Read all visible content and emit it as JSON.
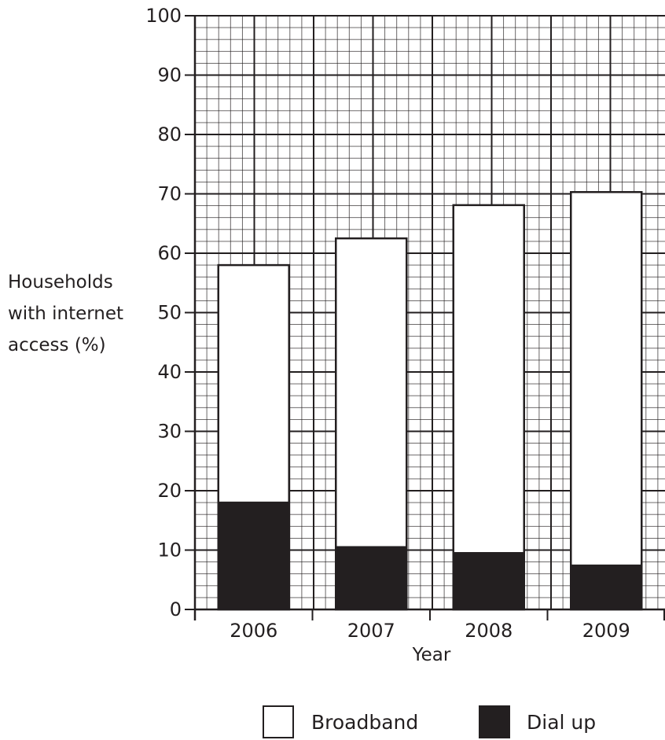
{
  "chart_data": {
    "type": "bar",
    "stacked": true,
    "categories": [
      "2006",
      "2007",
      "2008",
      "2009"
    ],
    "series": [
      {
        "name": "Dial up",
        "values": [
          18,
          10.5,
          9.5,
          7.4
        ],
        "color": "#231f20"
      },
      {
        "name": "Broadband",
        "values": [
          40,
          52,
          58.6,
          62.9
        ],
        "color": "#ffffff"
      }
    ],
    "totals": [
      58,
      62.5,
      68.1,
      70.3
    ],
    "xlabel": "Year",
    "ylabel_lines": [
      "Households",
      "with internet",
      "access (%)"
    ],
    "ylim": [
      0,
      100
    ],
    "yticks": [
      "0",
      "10",
      "20",
      "30",
      "40",
      "50",
      "60",
      "70",
      "80",
      "90",
      "100"
    ],
    "grid": true,
    "legend_position": "bottom",
    "legend": [
      {
        "label": "Broadband",
        "swatch": "#ffffff"
      },
      {
        "label": "Dial up",
        "swatch": "#231f20"
      }
    ],
    "colors": {
      "ink": "#231f20",
      "grid": "#231f20"
    }
  }
}
